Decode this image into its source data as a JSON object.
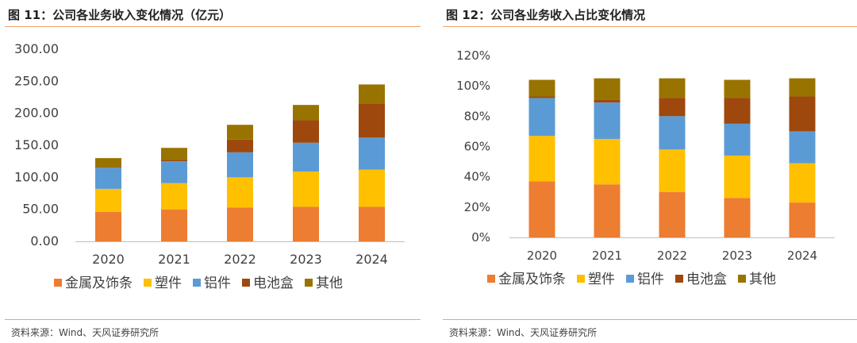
{
  "panels": [
    {
      "title": "图 11：公司各业务收入变化情况（亿元）",
      "source": "资料来源：Wind、天风证券研究所"
    },
    {
      "title": "图 12：公司各业务收入占比变化情况",
      "source": "资料来源：Wind、天风证券研究所"
    }
  ],
  "chart_data": [
    {
      "type": "bar",
      "stacked": true,
      "title": "图 11：公司各业务收入变化情况（亿元）",
      "categories": [
        "2020",
        "2021",
        "2022",
        "2023",
        "2024"
      ],
      "series": [
        {
          "name": "金属及饰条",
          "color": "#ed7d31",
          "values": [
            46,
            50,
            53,
            54,
            54
          ]
        },
        {
          "name": "塑件",
          "color": "#ffc000",
          "values": [
            36,
            41,
            47,
            55,
            58
          ]
        },
        {
          "name": "铝件",
          "color": "#5b9bd5",
          "values": [
            33,
            34,
            39,
            45,
            50
          ]
        },
        {
          "name": "电池盒",
          "color": "#9e480e",
          "values": [
            1,
            2,
            20,
            35,
            53
          ]
        },
        {
          "name": "其他",
          "color": "#997300",
          "values": [
            14,
            19,
            23,
            24,
            30
          ]
        }
      ],
      "ylim": [
        0,
        300
      ],
      "yticks": [
        "0.00",
        "50.00",
        "100.00",
        "150.00",
        "200.00",
        "250.00",
        "300.00"
      ],
      "legend_position": "bottom",
      "grid": false
    },
    {
      "type": "bar",
      "stacked": true,
      "title": "图 12：公司各业务收入占比变化情况",
      "categories": [
        "2020",
        "2021",
        "2022",
        "2023",
        "2024"
      ],
      "series": [
        {
          "name": "金属及饰条",
          "color": "#ed7d31",
          "values": [
            37,
            35,
            30,
            26,
            23
          ]
        },
        {
          "name": "塑件",
          "color": "#ffc000",
          "values": [
            30,
            30,
            28,
            28,
            26
          ]
        },
        {
          "name": "铝件",
          "color": "#5b9bd5",
          "values": [
            25,
            24,
            22,
            21,
            21
          ]
        },
        {
          "name": "电池盒",
          "color": "#9e480e",
          "values": [
            1,
            2,
            12,
            17,
            23
          ]
        },
        {
          "name": "其他",
          "color": "#997300",
          "values": [
            11,
            14,
            13,
            12,
            12
          ]
        }
      ],
      "ylim": [
        0,
        120
      ],
      "yticks": [
        "0%",
        "20%",
        "40%",
        "60%",
        "80%",
        "100%",
        "120%"
      ],
      "legend_position": "bottom",
      "grid": false
    }
  ]
}
